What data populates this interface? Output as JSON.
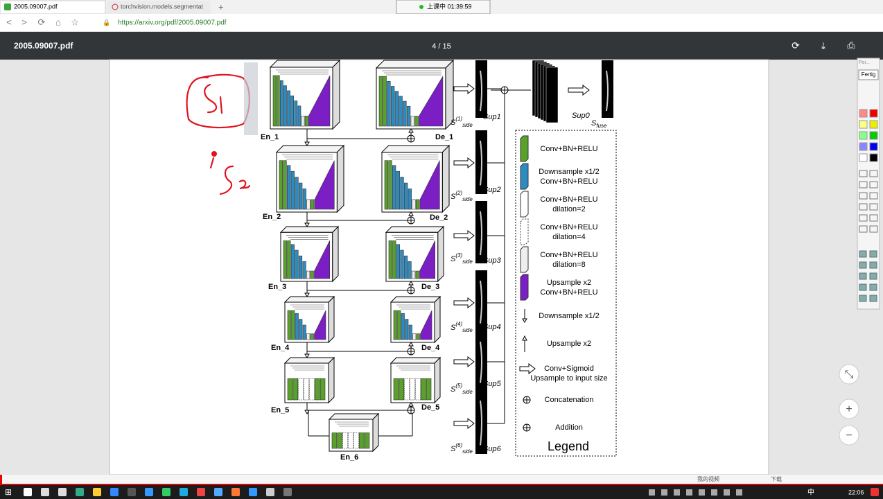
{
  "browser": {
    "tabs": [
      "2005.09007.pdf",
      "torchvision.models.segmentat"
    ],
    "timer": "上课中 01:39:59",
    "url": "https://arxiv.org/pdf/2005.09007.pdf"
  },
  "pdf_toolbar": {
    "filename": "2005.09007.pdf",
    "page_indicator": "4 / 15"
  },
  "figure": {
    "encoders": [
      "En_1",
      "En_2",
      "En_3",
      "En_4",
      "En_5",
      "En_6"
    ],
    "decoders": [
      "De_1",
      "De_2",
      "De_3",
      "De_4",
      "De_5"
    ],
    "side_outputs": [
      {
        "base": "S",
        "sup": "(1)",
        "sub": "side",
        "label": "Sup1"
      },
      {
        "base": "S",
        "sup": "(2)",
        "sub": "side",
        "label": "Sup2"
      },
      {
        "base": "S",
        "sup": "(3)",
        "sub": "side",
        "label": "Sup3"
      },
      {
        "base": "S",
        "sup": "(4)",
        "sub": "side",
        "label": "Sup4"
      },
      {
        "base": "S",
        "sup": "(5)",
        "sub": "side",
        "label": "Sup5"
      },
      {
        "base": "S",
        "sup": "(6)",
        "sub": "side",
        "label": "Sup6"
      }
    ],
    "fuse": {
      "label": "Sup0",
      "base": "S",
      "sub": "fuse"
    },
    "legend": {
      "title": "Legend",
      "items": [
        [
          "Conv+BN+RELU"
        ],
        [
          "Downsample x1/2",
          "Conv+BN+RELU"
        ],
        [
          "Conv+BN+RELU",
          "dilation=2"
        ],
        [
          "Conv+BN+RELU",
          "dilation=4"
        ],
        [
          "Conv+BN+RELU",
          "dilation=8"
        ],
        [
          "Upsample x2",
          "Conv+BN+RELU"
        ],
        [
          "Downsample x1/2"
        ],
        [
          "Upsample x2"
        ],
        [
          "Conv+Sigmoid",
          "Upsample to input size"
        ],
        [
          "Concatenation"
        ],
        [
          "Addition"
        ]
      ]
    }
  },
  "annotation_panel": {
    "header": "Poi...",
    "button": "Fertig"
  },
  "status_bar": {
    "video": "我的视频",
    "download": "下载"
  },
  "taskbar": {
    "ime": "中",
    "time": "22:06"
  }
}
